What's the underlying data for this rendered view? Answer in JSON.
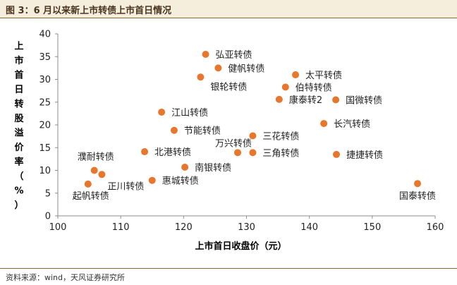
{
  "figure": {
    "label": "图 3：6 月以来新上市转债上市首日情况",
    "source": "资料来源：wind，天风证券研究所"
  },
  "chart_data": {
    "type": "scatter",
    "xlabel": "上市首日收盘价（元）",
    "ylabel": "上市首日转股溢价率（%）",
    "xlim": [
      100,
      160
    ],
    "ylim": [
      0,
      40
    ],
    "xticks": [
      100,
      110,
      120,
      130,
      140,
      150,
      160
    ],
    "yticks": [
      0,
      5,
      10,
      15,
      20,
      25,
      30,
      35,
      40
    ],
    "grid": false,
    "point_color": "#e8772e",
    "points": [
      {
        "label": "弘亚转债",
        "x": 123.5,
        "y": 35.5
      },
      {
        "label": "健帆转债",
        "x": 125.5,
        "y": 32.5
      },
      {
        "label": "太平转债",
        "x": 137.8,
        "y": 31.0
      },
      {
        "label": "银轮转债",
        "x": 122.7,
        "y": 30.5
      },
      {
        "label": "伯特转债",
        "x": 136.2,
        "y": 28.3
      },
      {
        "label": "康泰转2",
        "x": 135.2,
        "y": 25.6
      },
      {
        "label": "国微转债",
        "x": 144.2,
        "y": 25.5
      },
      {
        "label": "江山转债",
        "x": 116.5,
        "y": 22.8
      },
      {
        "label": "长汽转债",
        "x": 142.3,
        "y": 20.3
      },
      {
        "label": "节能转债",
        "x": 118.5,
        "y": 18.8
      },
      {
        "label": "三花转债",
        "x": 131.0,
        "y": 17.6
      },
      {
        "label": "万兴转债",
        "x": 128.6,
        "y": 13.9
      },
      {
        "label": "三角转债",
        "x": 131.0,
        "y": 13.9
      },
      {
        "label": "北港转债",
        "x": 113.8,
        "y": 14.1
      },
      {
        "label": "捷捷转债",
        "x": 144.3,
        "y": 13.5
      },
      {
        "label": "南银转债",
        "x": 120.2,
        "y": 10.7
      },
      {
        "label": "濮耐转债",
        "x": 105.8,
        "y": 10.0
      },
      {
        "label": "正川转债",
        "x": 107.0,
        "y": 9.1
      },
      {
        "label": "惠城转债",
        "x": 115.0,
        "y": 7.8
      },
      {
        "label": "起帆转债",
        "x": 104.8,
        "y": 7.0
      },
      {
        "label": "国泰转债",
        "x": 157.2,
        "y": 7.1
      }
    ]
  }
}
